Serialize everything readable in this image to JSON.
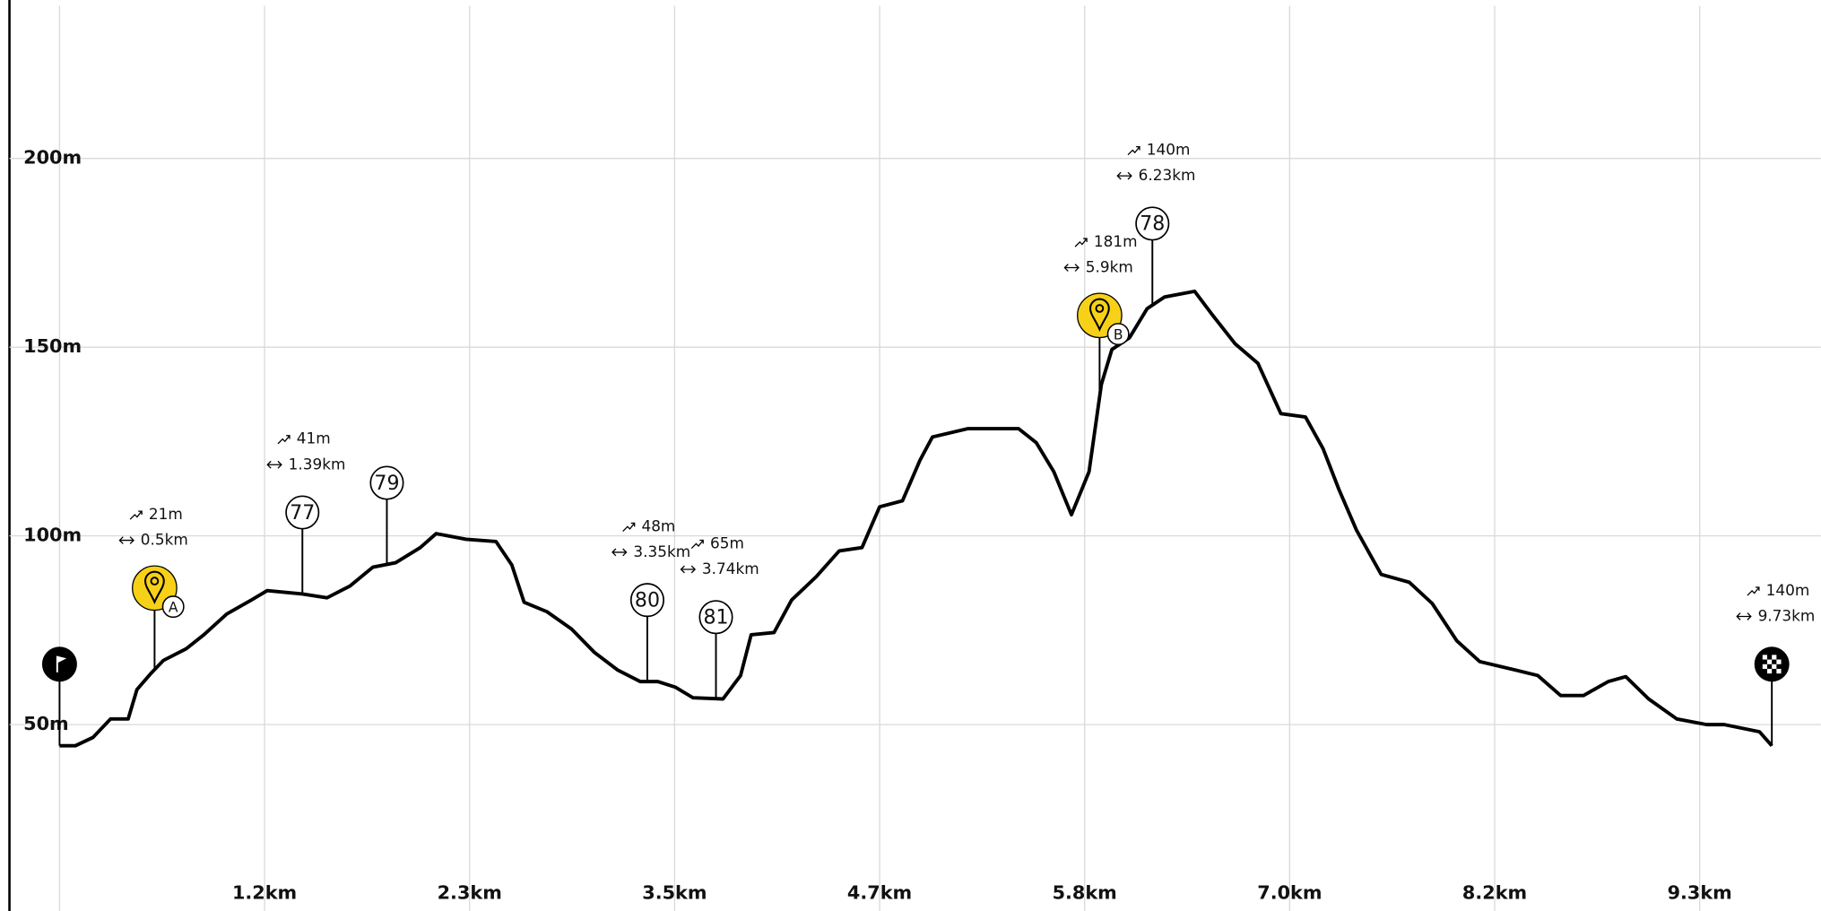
{
  "chart_data": {
    "type": "line",
    "x": [
      0,
      0.09,
      0.19,
      0.29,
      0.39,
      0.44,
      0.52,
      0.59,
      0.72,
      0.82,
      0.95,
      1.09,
      1.18,
      1.38,
      1.52,
      1.65,
      1.78,
      1.91,
      2.05,
      2.14,
      2.31,
      2.48,
      2.57,
      2.64,
      2.77,
      2.91,
      3.04,
      3.17,
      3.3,
      3.4,
      3.5,
      3.6,
      3.77,
      3.87,
      3.93,
      4.06,
      4.16,
      4.3,
      4.43,
      4.56,
      4.66,
      4.79,
      4.89,
      4.96,
      5.16,
      5.45,
      5.55,
      5.65,
      5.75,
      5.85,
      5.92,
      5.98,
      6.08,
      6.18,
      6.28,
      6.45,
      6.55,
      6.68,
      6.81,
      6.94,
      7.08,
      7.18,
      7.27,
      7.37,
      7.51,
      7.67,
      7.8,
      7.94,
      8.07,
      8.27,
      8.4,
      8.53,
      8.66,
      8.8,
      8.9,
      9.03,
      9.19,
      9.36,
      9.46,
      9.66,
      9.73
    ],
    "values": [
      44.4,
      44.4,
      46.6,
      51.5,
      51.5,
      59.3,
      63.6,
      67.0,
      70.1,
      73.8,
      79.3,
      83.0,
      85.5,
      84.6,
      83.6,
      86.7,
      91.7,
      92.9,
      96.9,
      100.6,
      99.1,
      98.5,
      92.3,
      82.4,
      79.9,
      75.3,
      69.1,
      64.5,
      61.4,
      61.4,
      59.9,
      57.1,
      56.8,
      63.0,
      73.8,
      74.4,
      83.0,
      89.2,
      96.0,
      96.9,
      107.7,
      109.3,
      120.1,
      126.2,
      128.4,
      128.4,
      124.7,
      117.0,
      105.6,
      117.0,
      140.1,
      149.4,
      152.5,
      160.2,
      163.3,
      164.8,
      158.6,
      150.9,
      145.7,
      132.4,
      131.5,
      123.1,
      112.3,
      101.5,
      89.8,
      87.7,
      82.1,
      72.2,
      66.7,
      64.5,
      63.0,
      57.7,
      57.7,
      61.4,
      62.7,
      56.8,
      51.5,
      50.0,
      50.0,
      48.1,
      44.4
    ],
    "color": "#000000",
    "xlim": [
      0,
      10
    ],
    "ylim": [
      0,
      240
    ],
    "xticks": [
      {
        "value": 1.165,
        "label": "1.2km"
      },
      {
        "value": 2.33,
        "label": "2.3km"
      },
      {
        "value": 3.495,
        "label": "3.5km"
      },
      {
        "value": 4.66,
        "label": "4.7km"
      },
      {
        "value": 5.825,
        "label": "5.8km"
      },
      {
        "value": 6.99,
        "label": "7.0km"
      },
      {
        "value": 8.155,
        "label": "8.2km"
      },
      {
        "value": 9.32,
        "label": "9.3km"
      }
    ],
    "yticks": [
      {
        "value": 50,
        "label": "50m"
      },
      {
        "value": 100,
        "label": "100m"
      },
      {
        "value": 150,
        "label": "150m"
      },
      {
        "value": 200,
        "label": "200m"
      }
    ],
    "grid": true,
    "markers": [
      {
        "kind": "start",
        "x": 0
      },
      {
        "kind": "waypoint",
        "name": "A",
        "x": 0.54,
        "climb": "21m",
        "distance": "0.5km"
      },
      {
        "kind": "poi",
        "name": "77",
        "x": 1.38,
        "climb": "41m",
        "distance": "1.39km"
      },
      {
        "kind": "poi",
        "name": "79",
        "x": 1.86
      },
      {
        "kind": "poi",
        "name": "80",
        "x": 3.34,
        "climb": "48m",
        "distance": "3.35km"
      },
      {
        "kind": "poi",
        "name": "81",
        "x": 3.73,
        "climb": "65m",
        "distance": "3.74km"
      },
      {
        "kind": "waypoint",
        "name": "B",
        "x": 5.91,
        "climb": "181m",
        "distance": "5.9km"
      },
      {
        "kind": "poi",
        "name": "78",
        "x": 6.21,
        "climb": "140m",
        "distance": "6.23km"
      },
      {
        "kind": "finish",
        "x": 9.73,
        "climb": "140m",
        "distance": "9.73km"
      }
    ]
  }
}
